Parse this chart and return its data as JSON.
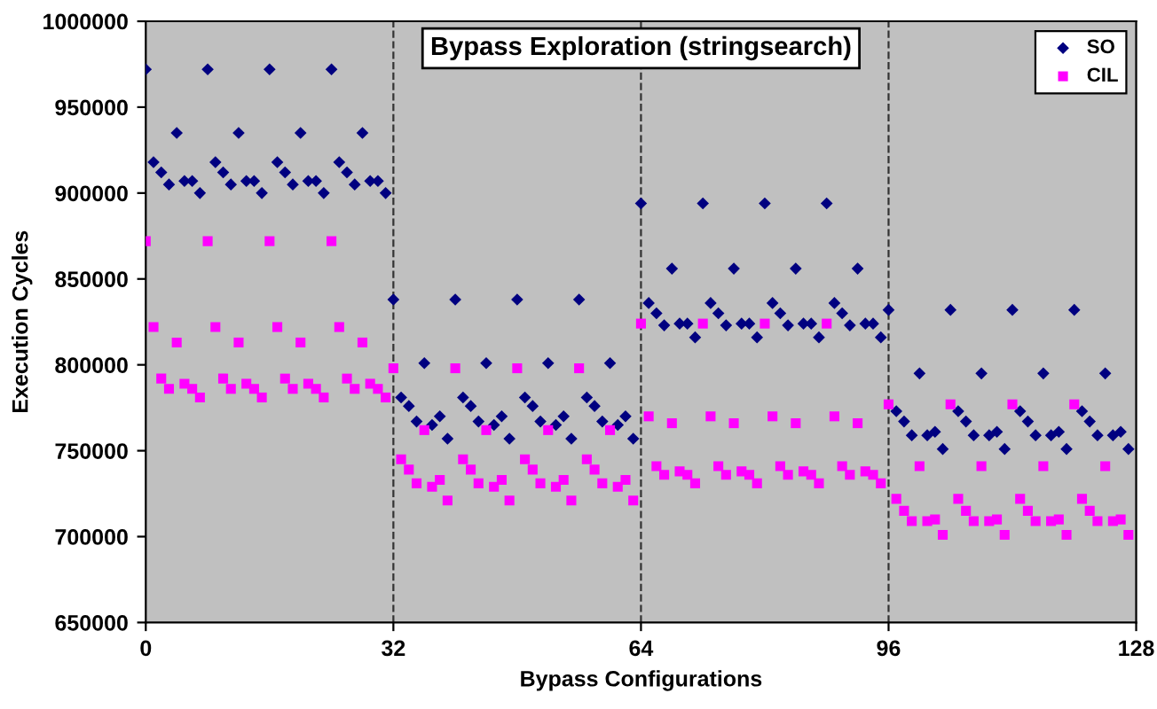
{
  "chart_data": {
    "type": "scatter",
    "title": "Bypass Exploration (stringsearch)",
    "xlabel": "Bypass Configurations",
    "ylabel": "Execution Cycles",
    "x": [
      0,
      1,
      2,
      3,
      4,
      5,
      6,
      7,
      8,
      9,
      10,
      11,
      12,
      13,
      14,
      15,
      16,
      17,
      18,
      19,
      20,
      21,
      22,
      23,
      24,
      25,
      26,
      27,
      28,
      29,
      30,
      31,
      32,
      33,
      34,
      35,
      36,
      37,
      38,
      39,
      40,
      41,
      42,
      43,
      44,
      45,
      46,
      47,
      48,
      49,
      50,
      51,
      52,
      53,
      54,
      55,
      56,
      57,
      58,
      59,
      60,
      61,
      62,
      63,
      64,
      65,
      66,
      67,
      68,
      69,
      70,
      71,
      72,
      73,
      74,
      75,
      76,
      77,
      78,
      79,
      80,
      81,
      82,
      83,
      84,
      85,
      86,
      87,
      88,
      89,
      90,
      91,
      92,
      93,
      94,
      95,
      96,
      97,
      98,
      99,
      100,
      101,
      102,
      103,
      104,
      105,
      106,
      107,
      108,
      109,
      110,
      111,
      112,
      113,
      114,
      115,
      116,
      117,
      118,
      119,
      120,
      121,
      122,
      123,
      124,
      125,
      126,
      127
    ],
    "series": [
      {
        "name": "SO",
        "color": "#000080",
        "marker": "diamond",
        "values": [
          972000,
          918000,
          912000,
          905000,
          935000,
          907000,
          907000,
          900000,
          972000,
          918000,
          912000,
          905000,
          935000,
          907000,
          907000,
          900000,
          972000,
          918000,
          912000,
          905000,
          935000,
          907000,
          907000,
          900000,
          972000,
          918000,
          912000,
          905000,
          935000,
          907000,
          907000,
          900000,
          838000,
          781000,
          776000,
          767000,
          801000,
          765000,
          770000,
          757000,
          838000,
          781000,
          776000,
          767000,
          801000,
          765000,
          770000,
          757000,
          838000,
          781000,
          776000,
          767000,
          801000,
          765000,
          770000,
          757000,
          838000,
          781000,
          776000,
          767000,
          801000,
          765000,
          770000,
          757000,
          894000,
          836000,
          830000,
          823000,
          856000,
          824000,
          824000,
          816000,
          894000,
          836000,
          830000,
          823000,
          856000,
          824000,
          824000,
          816000,
          894000,
          836000,
          830000,
          823000,
          856000,
          824000,
          824000,
          816000,
          894000,
          836000,
          830000,
          823000,
          856000,
          824000,
          824000,
          816000,
          832000,
          773000,
          767000,
          759000,
          795000,
          759000,
          761000,
          751000,
          832000,
          773000,
          767000,
          759000,
          795000,
          759000,
          761000,
          751000,
          832000,
          773000,
          767000,
          759000,
          795000,
          759000,
          761000,
          751000,
          832000,
          773000,
          767000,
          759000,
          795000,
          759000,
          761000,
          751000
        ]
      },
      {
        "name": "CIL",
        "color": "#ff00ff",
        "marker": "square",
        "values": [
          872000,
          822000,
          792000,
          786000,
          813000,
          789000,
          786000,
          781000,
          872000,
          822000,
          792000,
          786000,
          813000,
          789000,
          786000,
          781000,
          872000,
          822000,
          792000,
          786000,
          813000,
          789000,
          786000,
          781000,
          872000,
          822000,
          792000,
          786000,
          813000,
          789000,
          786000,
          781000,
          798000,
          745000,
          739000,
          731000,
          762000,
          729000,
          733000,
          721000,
          798000,
          745000,
          739000,
          731000,
          762000,
          729000,
          733000,
          721000,
          798000,
          745000,
          739000,
          731000,
          762000,
          729000,
          733000,
          721000,
          798000,
          745000,
          739000,
          731000,
          762000,
          729000,
          733000,
          721000,
          824000,
          770000,
          741000,
          736000,
          766000,
          738000,
          736000,
          731000,
          824000,
          770000,
          741000,
          736000,
          766000,
          738000,
          736000,
          731000,
          824000,
          770000,
          741000,
          736000,
          766000,
          738000,
          736000,
          731000,
          824000,
          770000,
          741000,
          736000,
          766000,
          738000,
          736000,
          731000,
          777000,
          722000,
          715000,
          709000,
          741000,
          709000,
          710000,
          701000,
          777000,
          722000,
          715000,
          709000,
          741000,
          709000,
          710000,
          701000,
          777000,
          722000,
          715000,
          709000,
          741000,
          709000,
          710000,
          701000,
          777000,
          722000,
          715000,
          709000,
          741000,
          709000,
          710000,
          701000
        ]
      }
    ],
    "xlim": [
      0,
      128
    ],
    "xticks": [
      0,
      32,
      64,
      96,
      128
    ],
    "ylim": [
      650000,
      1000000
    ],
    "yticks": [
      650000,
      700000,
      750000,
      800000,
      850000,
      900000,
      950000,
      1000000
    ],
    "ref_lines": [
      {
        "axis": "x",
        "value": 32,
        "color": "#333333",
        "line_style": "dashed"
      },
      {
        "axis": "x",
        "value": 64,
        "color": "#333333",
        "line_style": "dashed"
      },
      {
        "axis": "x",
        "value": 96,
        "color": "#333333",
        "line_style": "dashed"
      }
    ],
    "grid": false,
    "legend": "top right"
  }
}
